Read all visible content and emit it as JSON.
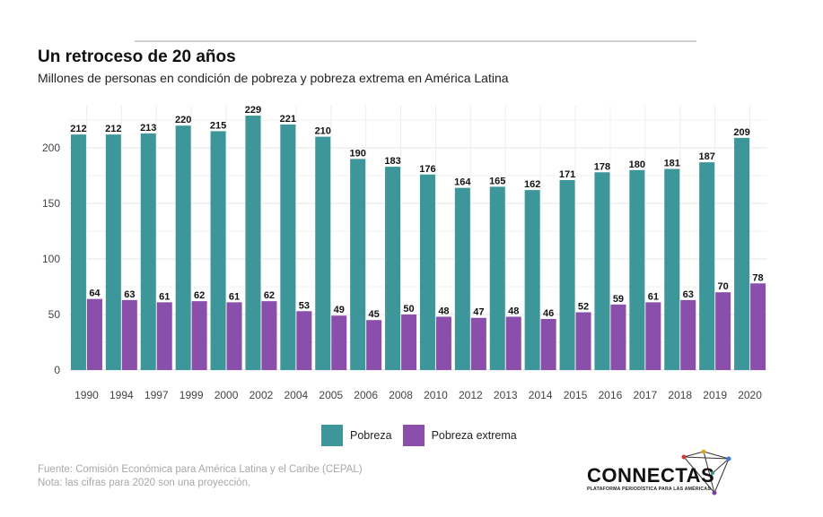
{
  "header": {
    "title": "Un retroceso de 20 años",
    "subtitle": "Millones de personas en condición de pobreza y pobreza extrema en América Latina"
  },
  "colors": {
    "pobreza": "#3d9699",
    "pobreza_extrema": "#8a4fab",
    "grid": "#e6e6e6",
    "axis_text": "#444444"
  },
  "chart_data": {
    "type": "bar",
    "categories": [
      "1990",
      "1994",
      "1997",
      "1999",
      "2000",
      "2002",
      "2004",
      "2005",
      "2006",
      "2008",
      "2010",
      "2012",
      "2013",
      "2014",
      "2015",
      "2016",
      "2017",
      "2018",
      "2019",
      "2020"
    ],
    "series": [
      {
        "name": "Pobreza",
        "values": [
          212,
          212,
          213,
          220,
          215,
          229,
          221,
          210,
          190,
          183,
          176,
          164,
          165,
          162,
          171,
          178,
          180,
          181,
          187,
          209
        ]
      },
      {
        "name": "Pobreza extrema",
        "values": [
          64,
          63,
          61,
          62,
          61,
          62,
          53,
          49,
          45,
          50,
          48,
          47,
          48,
          46,
          52,
          59,
          61,
          63,
          70,
          78
        ]
      }
    ],
    "yticks": [
      0,
      50,
      100,
      150,
      200
    ],
    "ylim": [
      0,
      235
    ],
    "grid": true,
    "legend_position": "bottom"
  },
  "legend": {
    "items": [
      "Pobreza",
      "Pobreza extrema"
    ]
  },
  "footer": {
    "source": "Fuente: Comisión Económica para América Latina y el Caribe (CEPAL)",
    "note": "Nota: las cifras para 2020 son una proyección."
  },
  "brand": {
    "name": "CONNECTAS",
    "tagline": "PLATAFORMA PERIODÍSTICA PARA LAS AMÉRICAS"
  }
}
